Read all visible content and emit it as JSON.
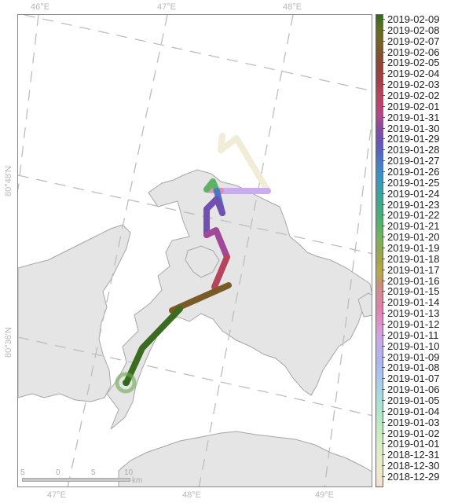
{
  "map": {
    "longitude_ticks_top": [
      "46°E",
      "47°E",
      "48°E"
    ],
    "longitude_ticks_bottom": [
      "47°E",
      "48°E",
      "49°E"
    ],
    "latitude_ticks": [
      "80°48'N",
      "80°36'N"
    ],
    "scale_bar": {
      "labels": [
        "5",
        "0",
        "5",
        "10"
      ],
      "unit": "km"
    }
  },
  "legend": {
    "dates": [
      "2019-02-09",
      "2019-02-08",
      "2019-02-07",
      "2019-02-06",
      "2019-02-05",
      "2019-02-04",
      "2019-02-03",
      "2019-02-02",
      "2019-02-01",
      "2019-01-31",
      "2019-01-30",
      "2019-01-29",
      "2019-01-28",
      "2019-01-27",
      "2019-01-26",
      "2019-01-25",
      "2019-01-24",
      "2019-01-23",
      "2019-01-22",
      "2019-01-21",
      "2019-01-20",
      "2019-01-19",
      "2019-01-18",
      "2019-01-17",
      "2019-01-16",
      "2019-01-15",
      "2019-01-14",
      "2019-01-13",
      "2019-01-12",
      "2019-01-11",
      "2019-01-10",
      "2019-01-09",
      "2019-01-08",
      "2019-01-07",
      "2019-01-06",
      "2019-01-05",
      "2019-01-04",
      "2019-01-03",
      "2019-01-02",
      "2019-01-01",
      "2018-12-31",
      "2018-12-30",
      "2018-12-29"
    ],
    "colors": [
      "#2e6b1e",
      "#5d6e1e",
      "#6f6a22",
      "#7a5a26",
      "#8a4a2e",
      "#9a4038",
      "#a83e4a",
      "#b6445c",
      "#c04070",
      "#b04890",
      "#8a4aa0",
      "#7050b0",
      "#5a60c0",
      "#4a78c8",
      "#3a8ec8",
      "#3a9ab8",
      "#3aa4a0",
      "#40aa88",
      "#48b074",
      "#5cb266",
      "#7ab25a",
      "#94a84e",
      "#a8a448",
      "#baa84c",
      "#c89078",
      "#d8889a",
      "#e080a8",
      "#e08ac0",
      "#d89ad8",
      "#c8a8e8",
      "#b8b0ee",
      "#a8b8f0",
      "#a8c4ee",
      "#a8d0e8",
      "#a8dcde",
      "#aae4d0",
      "#b4e8c4",
      "#c4ecc0",
      "#d2eec0",
      "#e0eec4",
      "#ecebc8",
      "#f2e6cc",
      "#f6e0d2"
    ]
  }
}
